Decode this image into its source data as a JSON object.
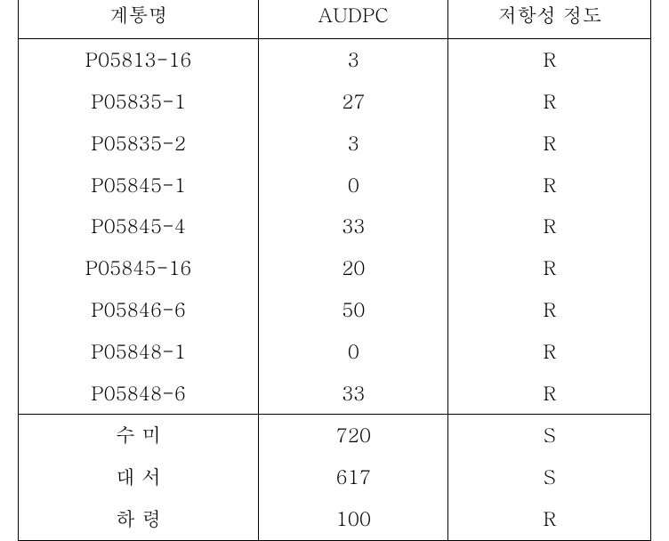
{
  "table": {
    "columns": [
      "계통명",
      "AUDPC",
      "저항성 정도"
    ],
    "column_widths": [
      "38%",
      "30%",
      "32%"
    ],
    "border_color": "#000000",
    "background_color": "#ffffff",
    "text_color": "#000000",
    "header_fontsize": 22,
    "cell_fontsize": 22,
    "font_family": "Batang, serif",
    "rows_section1": [
      {
        "name": "P05813-16",
        "audpc": "3",
        "resistance": "R"
      },
      {
        "name": "P05835-1",
        "audpc": "27",
        "resistance": "R"
      },
      {
        "name": "P05835-2",
        "audpc": "3",
        "resistance": "R"
      },
      {
        "name": "P05845-1",
        "audpc": "0",
        "resistance": "R"
      },
      {
        "name": "P05845-4",
        "audpc": "33",
        "resistance": "R"
      },
      {
        "name": "P05845-16",
        "audpc": "20",
        "resistance": "R"
      },
      {
        "name": "P05846-6",
        "audpc": "50",
        "resistance": "R"
      },
      {
        "name": "P05848-1",
        "audpc": "0",
        "resistance": "R"
      },
      {
        "name": "P05848-6",
        "audpc": "33",
        "resistance": "R"
      }
    ],
    "rows_section2": [
      {
        "name": "수 미",
        "audpc": "720",
        "resistance": "S"
      },
      {
        "name": "대 서",
        "audpc": "617",
        "resistance": "S"
      },
      {
        "name": "하 령",
        "audpc": "100",
        "resistance": "R"
      }
    ]
  }
}
